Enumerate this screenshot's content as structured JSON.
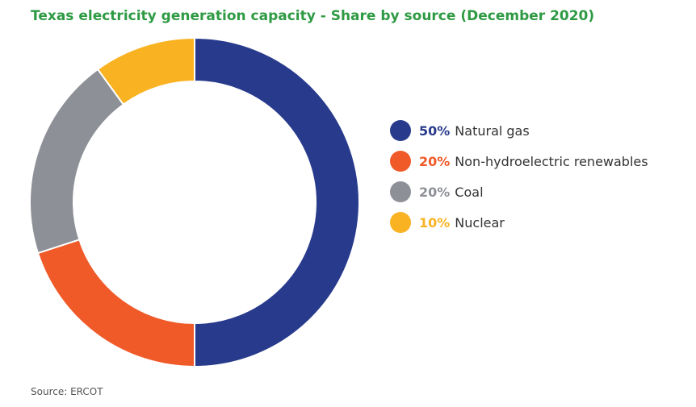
{
  "chart_data": {
    "type": "pie",
    "title": "Texas electricity generation capacity - Share by source (December 2020)",
    "source": "Source: ERCOT",
    "slices": [
      {
        "label": "Natural gas",
        "value": 50,
        "value_label": "50%",
        "color": "#283a8c"
      },
      {
        "label": "Non-hydroelectric renewables",
        "value": 20,
        "value_label": "20%",
        "color": "#ef5a28"
      },
      {
        "label": "Coal",
        "value": 20,
        "value_label": "20%",
        "color": "#8d9096"
      },
      {
        "label": "Nuclear",
        "value": 10,
        "value_label": "10%",
        "color": "#f9b222"
      }
    ],
    "legend_position": "right",
    "style": "donut"
  }
}
